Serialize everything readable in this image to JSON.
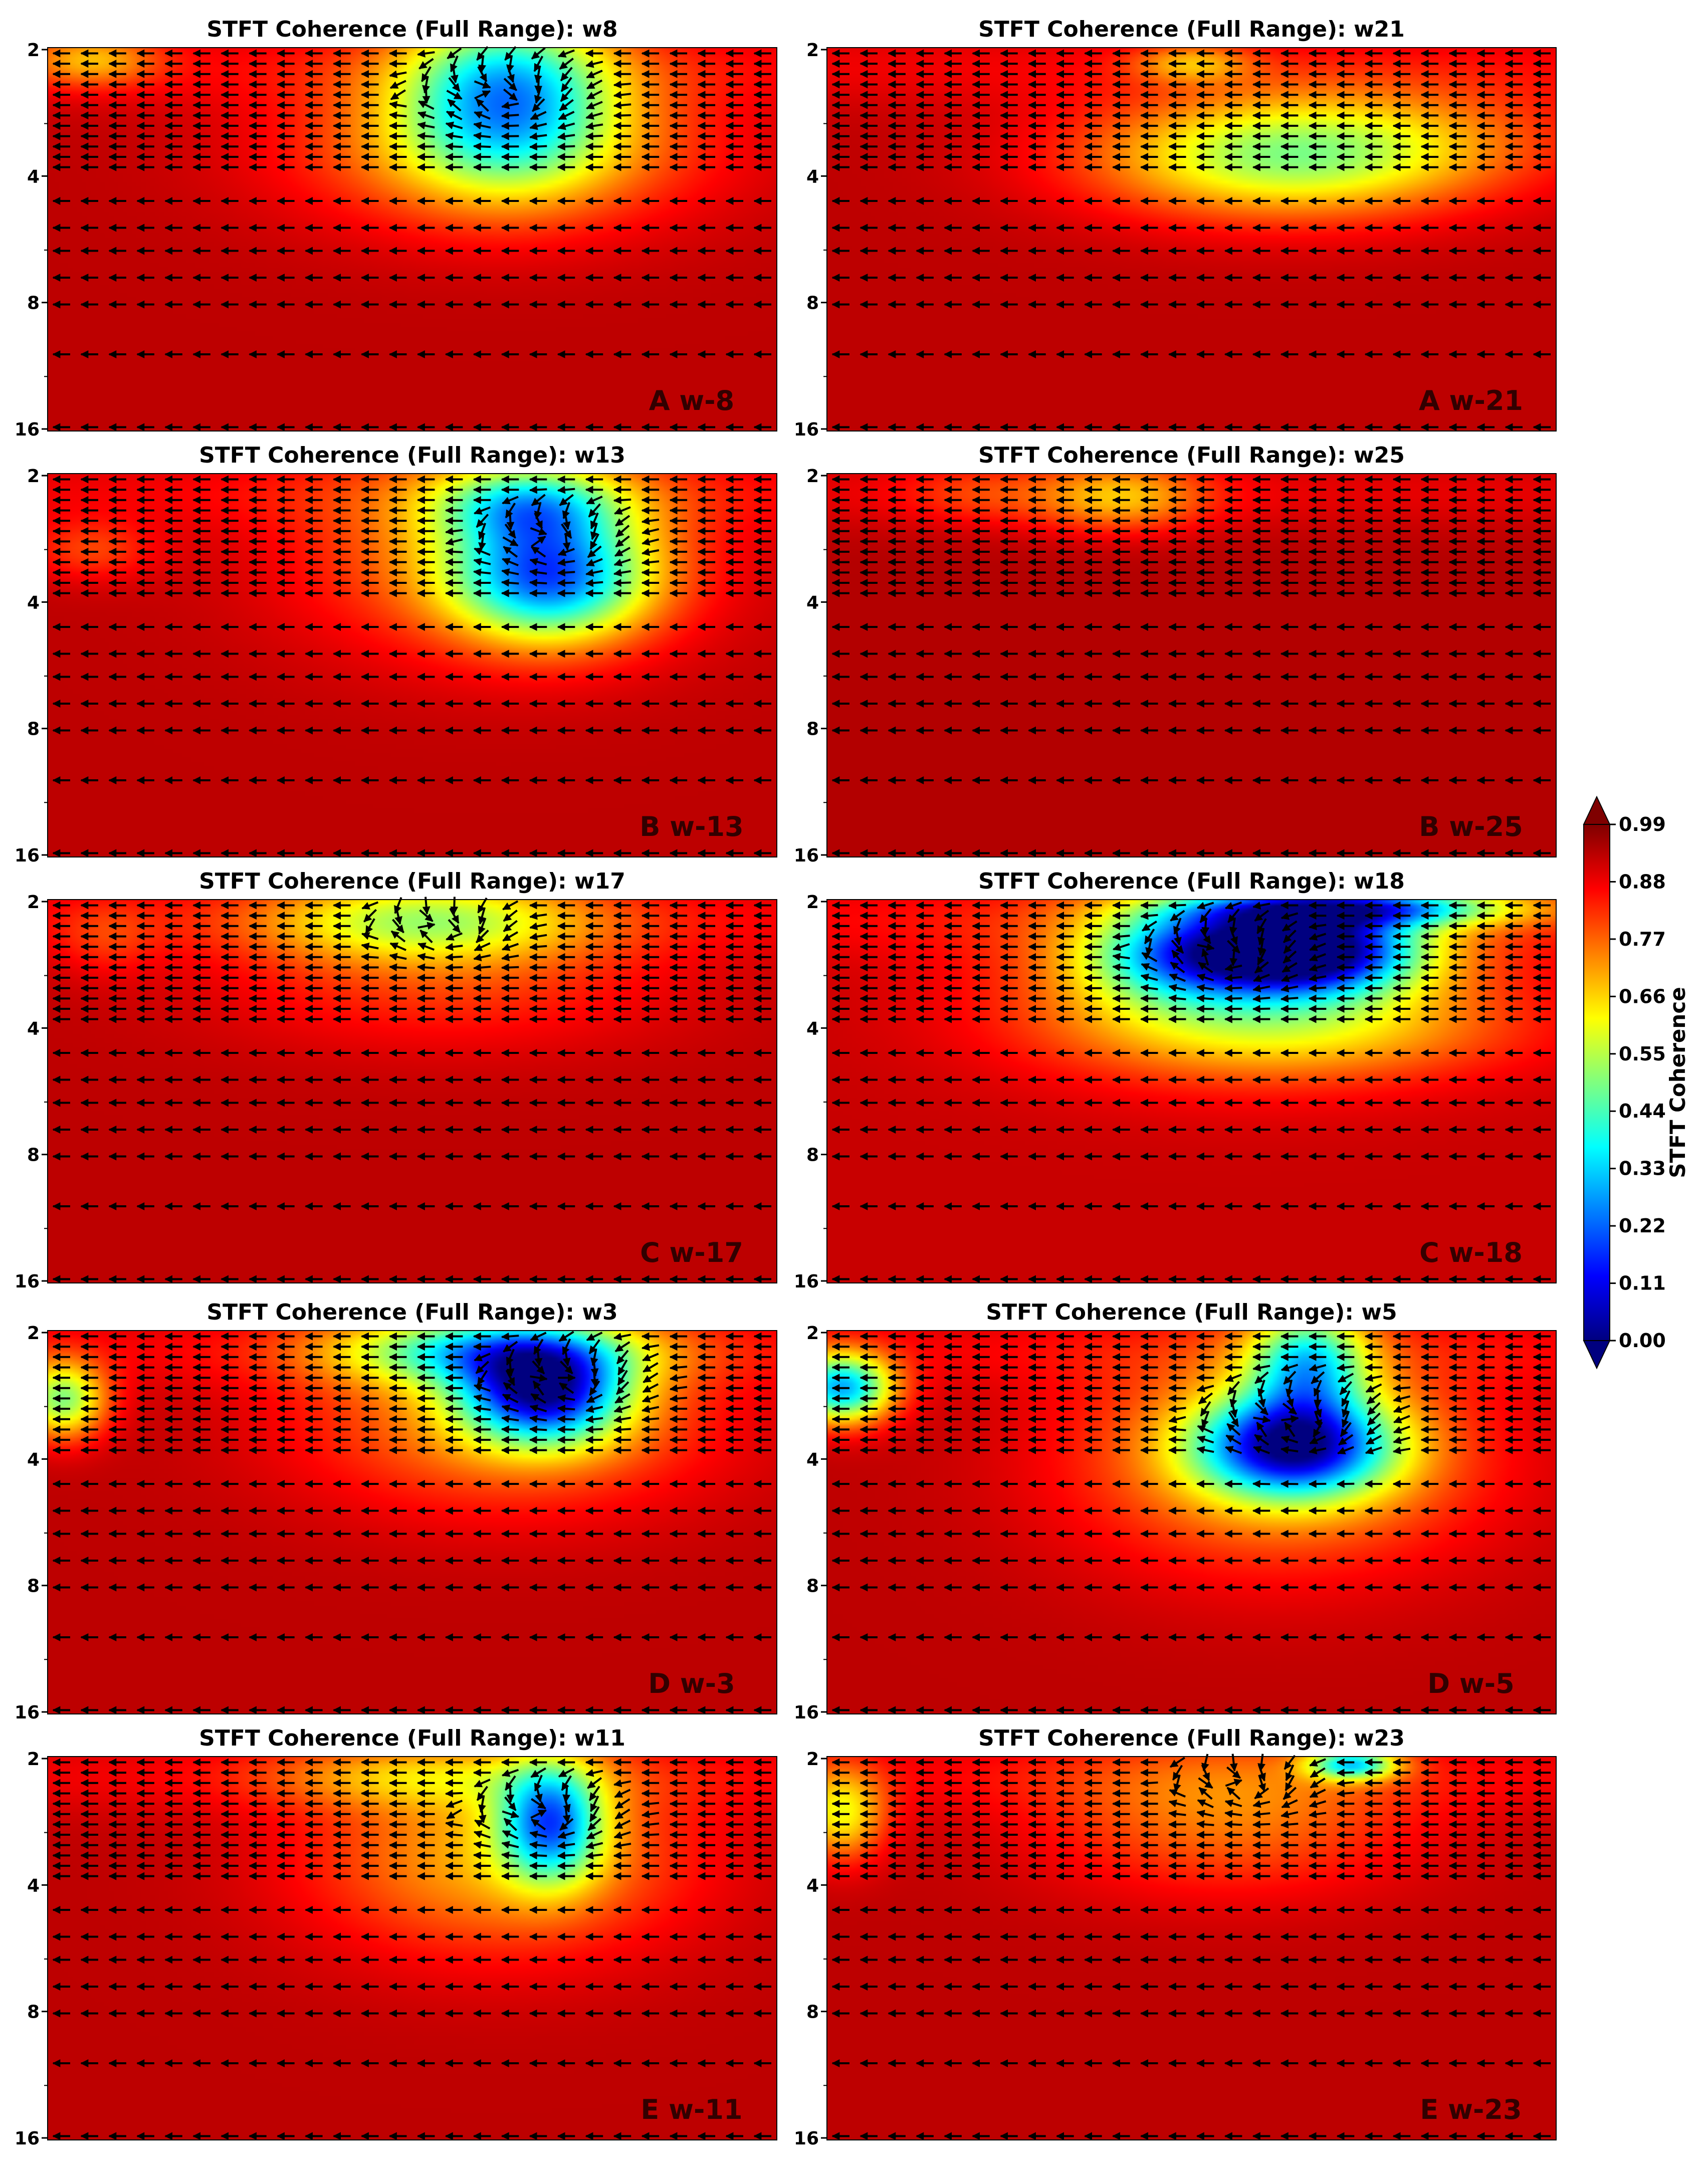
{
  "chart_data": {
    "type": "heatmap",
    "description_title_prefix": "STFT Coherence (Full Range)",
    "y_ticks": [
      "2",
      "4",
      "8",
      "16"
    ],
    "y_scale": "log2",
    "y_range": [
      2,
      16
    ],
    "colormap": "jet",
    "colorbar": {
      "label": "STFT Coherence",
      "ticks": [
        "0.99",
        "0.88",
        "0.77",
        "0.66",
        "0.55",
        "0.44",
        "0.33",
        "0.22",
        "0.11",
        "0.00"
      ],
      "range": [
        0,
        0.99
      ],
      "extend": "both"
    },
    "panels": [
      {
        "title": "STFT Coherence (Full Range): w8",
        "label": "A w-8",
        "baseline": 0.93,
        "blobs": [
          {
            "x": 0.63,
            "y": 0.12,
            "rx": 0.14,
            "ry": 0.22,
            "depth": 0.5
          },
          {
            "x": 0.62,
            "y": 0.25,
            "rx": 0.27,
            "ry": 0.21,
            "depth": 0.25
          },
          {
            "x": 0.06,
            "y": 0.03,
            "rx": 0.09,
            "ry": 0.07,
            "depth": 0.2
          }
        ],
        "vortices": [
          {
            "x": 0.63,
            "y": 0.13,
            "r": 0.17
          }
        ]
      },
      {
        "title": "STFT Coherence (Full Range): w21",
        "label": "A w-21",
        "baseline": 0.93,
        "blobs": [
          {
            "x": 0.63,
            "y": 0.3,
            "rx": 0.26,
            "ry": 0.15,
            "depth": 0.33
          },
          {
            "x": 0.72,
            "y": 0.22,
            "rx": 0.3,
            "ry": 0.14,
            "depth": 0.15
          },
          {
            "x": 0.5,
            "y": 0.04,
            "rx": 0.08,
            "ry": 0.05,
            "depth": 0.18
          }
        ],
        "vortices": []
      },
      {
        "title": "STFT Coherence (Full Range): w13",
        "label": "B w-13",
        "baseline": 0.93,
        "blobs": [
          {
            "x": 0.69,
            "y": 0.27,
            "rx": 0.13,
            "ry": 0.16,
            "depth": 0.56
          },
          {
            "x": 0.66,
            "y": 0.08,
            "rx": 0.12,
            "ry": 0.1,
            "depth": 0.35
          },
          {
            "x": 0.62,
            "y": 0.2,
            "rx": 0.26,
            "ry": 0.26,
            "depth": 0.22
          },
          {
            "x": 0.06,
            "y": 0.2,
            "rx": 0.09,
            "ry": 0.08,
            "depth": 0.12
          }
        ],
        "vortices": [
          {
            "x": 0.7,
            "y": 0.18,
            "r": 0.15
          }
        ]
      },
      {
        "title": "STFT Coherence (Full Range): w25",
        "label": "B w-25",
        "baseline": 0.94,
        "blobs": [
          {
            "x": 0.4,
            "y": 0.06,
            "rx": 0.12,
            "ry": 0.09,
            "depth": 0.22
          },
          {
            "x": 0.2,
            "y": 0.05,
            "rx": 0.1,
            "ry": 0.08,
            "depth": 0.08
          }
        ],
        "vortices": []
      },
      {
        "title": "STFT Coherence (Full Range): w17",
        "label": "C w-17",
        "baseline": 0.93,
        "blobs": [
          {
            "x": 0.52,
            "y": 0.05,
            "rx": 0.22,
            "ry": 0.11,
            "depth": 0.3
          },
          {
            "x": 0.55,
            "y": 0.2,
            "rx": 0.3,
            "ry": 0.18,
            "depth": 0.12
          },
          {
            "x": 0.08,
            "y": 0.1,
            "rx": 0.07,
            "ry": 0.1,
            "depth": 0.08
          }
        ],
        "vortices": [
          {
            "x": 0.55,
            "y": 0.08,
            "r": 0.14
          }
        ]
      },
      {
        "title": "STFT Coherence (Full Range): w18",
        "label": "C w-18",
        "baseline": 0.92,
        "blobs": [
          {
            "x": 0.66,
            "y": 0.13,
            "rx": 0.14,
            "ry": 0.11,
            "depth": 0.82
          },
          {
            "x": 0.72,
            "y": 0.02,
            "rx": 0.22,
            "ry": 0.05,
            "depth": 0.55
          },
          {
            "x": 0.49,
            "y": 0.14,
            "rx": 0.13,
            "ry": 0.12,
            "depth": 0.42
          },
          {
            "x": 0.58,
            "y": 0.22,
            "rx": 0.3,
            "ry": 0.22,
            "depth": 0.3
          },
          {
            "x": 0.65,
            "y": 0.35,
            "rx": 0.3,
            "ry": 0.12,
            "depth": 0.12
          }
        ],
        "vortices": [
          {
            "x": 0.55,
            "y": 0.15,
            "r": 0.16
          }
        ]
      },
      {
        "title": "STFT Coherence (Full Range): w3",
        "label": "D w-3",
        "baseline": 0.93,
        "blobs": [
          {
            "x": 0.68,
            "y": 0.16,
            "rx": 0.11,
            "ry": 0.13,
            "depth": 0.7
          },
          {
            "x": 0.6,
            "y": 0.05,
            "rx": 0.2,
            "ry": 0.09,
            "depth": 0.4
          },
          {
            "x": 0.63,
            "y": 0.22,
            "rx": 0.27,
            "ry": 0.24,
            "depth": 0.22
          },
          {
            "x": 0.02,
            "y": 0.18,
            "rx": 0.06,
            "ry": 0.1,
            "depth": 0.42
          }
        ],
        "vortices": [
          {
            "x": 0.72,
            "y": 0.14,
            "r": 0.16
          }
        ]
      },
      {
        "title": "STFT Coherence (Full Range): w5",
        "label": "D w-5",
        "baseline": 0.93,
        "blobs": [
          {
            "x": 0.64,
            "y": 0.3,
            "rx": 0.13,
            "ry": 0.13,
            "depth": 0.72
          },
          {
            "x": 0.66,
            "y": 0.08,
            "rx": 0.08,
            "ry": 0.14,
            "depth": 0.45
          },
          {
            "x": 0.62,
            "y": 0.33,
            "rx": 0.27,
            "ry": 0.28,
            "depth": 0.25
          },
          {
            "x": 0.02,
            "y": 0.15,
            "rx": 0.07,
            "ry": 0.09,
            "depth": 0.62
          }
        ],
        "vortices": [
          {
            "x": 0.65,
            "y": 0.25,
            "r": 0.18
          }
        ]
      },
      {
        "title": "STFT Coherence (Full Range): w11",
        "label": "E w-11",
        "baseline": 0.93,
        "blobs": [
          {
            "x": 0.69,
            "y": 0.17,
            "rx": 0.07,
            "ry": 0.15,
            "depth": 0.55
          },
          {
            "x": 0.62,
            "y": 0.26,
            "rx": 0.25,
            "ry": 0.25,
            "depth": 0.24
          },
          {
            "x": 0.5,
            "y": 0.05,
            "rx": 0.2,
            "ry": 0.08,
            "depth": 0.15
          }
        ],
        "vortices": [
          {
            "x": 0.69,
            "y": 0.16,
            "r": 0.15
          }
        ]
      },
      {
        "title": "STFT Coherence (Full Range): w23",
        "label": "E w-23",
        "baseline": 0.93,
        "blobs": [
          {
            "x": 0.72,
            "y": 0.02,
            "rx": 0.06,
            "ry": 0.04,
            "depth": 0.5
          },
          {
            "x": 0.55,
            "y": 0.15,
            "rx": 0.25,
            "ry": 0.2,
            "depth": 0.18
          },
          {
            "x": 0.02,
            "y": 0.15,
            "rx": 0.06,
            "ry": 0.12,
            "depth": 0.3
          }
        ],
        "vortices": [
          {
            "x": 0.58,
            "y": 0.08,
            "r": 0.14
          }
        ]
      }
    ]
  }
}
